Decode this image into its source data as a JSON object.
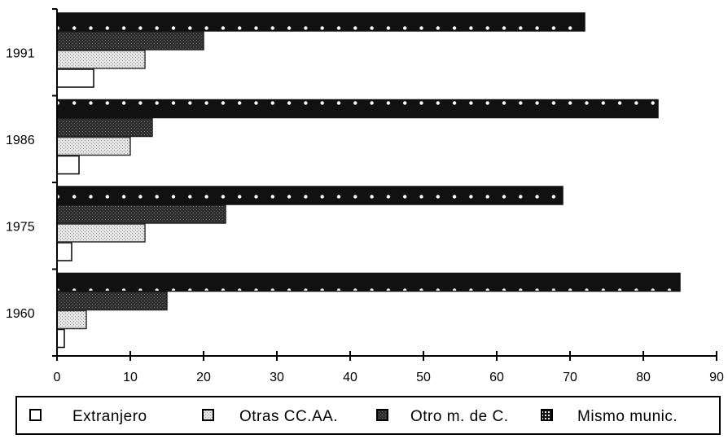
{
  "chart_data": {
    "type": "bar",
    "orientation": "horizontal",
    "categories": [
      "1991",
      "1986",
      "1975",
      "1960"
    ],
    "series": [
      {
        "name": "Extranjero",
        "values": [
          5,
          3,
          2,
          1
        ]
      },
      {
        "name": "Otras CC.AA.",
        "values": [
          12,
          10,
          12,
          4
        ]
      },
      {
        "name": "Otro m. de C.",
        "values": [
          20,
          13,
          23,
          15
        ]
      },
      {
        "name": "Mismo munic.",
        "values": [
          72,
          82,
          69,
          85
        ]
      }
    ],
    "x_ticks": [
      "0",
      "10",
      "20",
      "30",
      "40",
      "50",
      "60",
      "70",
      "80",
      "90"
    ],
    "xlim": [
      0,
      90
    ],
    "title": "",
    "xlabel": "",
    "ylabel": "",
    "grid": false,
    "legend_position": "bottom",
    "series_styles": [
      "white",
      "light-gray-dotted",
      "dark-gray-dotted",
      "black-with-white-dots"
    ]
  }
}
